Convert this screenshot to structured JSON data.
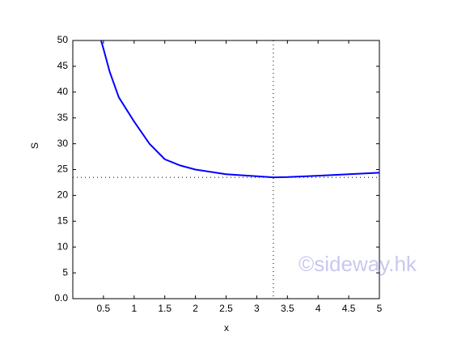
{
  "chart_data": {
    "type": "line",
    "x_label": "x",
    "y_label": "S",
    "x": [
      0.46,
      0.5,
      0.6,
      0.75,
      1,
      1.25,
      1.5,
      1.75,
      2,
      2.5,
      3,
      3.27,
      3.5,
      4,
      4.5,
      5
    ],
    "series": [
      {
        "name": "S",
        "color": "#0000ff",
        "values": [
          50,
          48.4,
          44,
          39,
          34.3,
          30,
          27,
          25.8,
          25,
          24.1,
          23.7,
          23.5,
          23.55,
          23.8,
          24.1,
          24.4
        ]
      }
    ],
    "min_point": {
      "x": 3.27,
      "y": 23.5
    },
    "xlim": [
      0,
      5
    ],
    "ylim": [
      0,
      50
    ],
    "xticks": [
      0.5,
      1,
      1.5,
      2,
      2.5,
      3,
      3.5,
      4,
      4.5,
      5
    ],
    "yticks": [
      {
        "value": 0,
        "label": "0.0"
      },
      5,
      10,
      15,
      20,
      25,
      30,
      35,
      40,
      45,
      50
    ],
    "watermark": "©sideway.hk"
  }
}
